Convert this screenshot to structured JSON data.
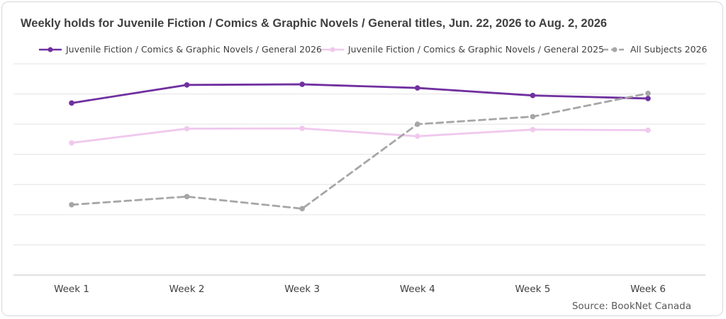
{
  "chart_data": {
    "type": "line",
    "title": "Weekly holds for Juvenile Fiction / Comics & Graphic Novels / General titles, Jun. 22, 2026 to Aug. 2, 2026",
    "xlabel": "",
    "ylabel": "",
    "categories": [
      "Week 1",
      "Week 2",
      "Week 3",
      "Week 4",
      "Week 5",
      "Week 6"
    ],
    "ylim": [
      0,
      7
    ],
    "grid": true,
    "legend_position": "top",
    "y_tick_labels_shown": false,
    "series": [
      {
        "name": "Juvenile Fiction / Comics & Graphic Novels / General 2026",
        "values": [
          5.7,
          6.3,
          6.32,
          6.2,
          5.95,
          5.85
        ],
        "color": "#7030a0",
        "dash": "solid"
      },
      {
        "name": "Juvenile Fiction / Comics & Graphic Novels / General 2025",
        "values": [
          4.38,
          4.85,
          4.86,
          4.6,
          4.82,
          4.8
        ],
        "color": "#f0c8ee",
        "dash": "solid"
      },
      {
        "name": "All Subjects 2026",
        "values": [
          2.33,
          2.6,
          2.2,
          5.0,
          5.25,
          6.02
        ],
        "color": "#a6a6a6",
        "dash": "dashed"
      }
    ],
    "source": "Source: BookNet Canada"
  }
}
